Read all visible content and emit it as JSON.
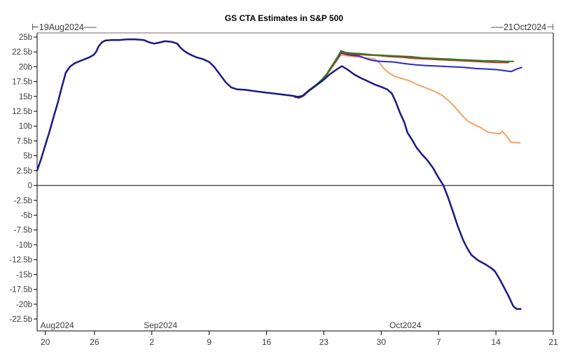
{
  "chart_data": {
    "type": "line",
    "title": "GS CTA Estimates in S&P 500",
    "grid": false,
    "legend": "none",
    "x_axis": {
      "start_label": "19Aug2024",
      "end_label": "21Oct2024",
      "start_decorated": "⊢19Aug2024──",
      "end_decorated": "──21Oct2024⊣",
      "unit": "days from 19Aug2024",
      "range_days": [
        0,
        63
      ],
      "ticks": [
        {
          "day": 1,
          "label": "20"
        },
        {
          "day": 7,
          "label": "26"
        },
        {
          "day": 14,
          "label": "2"
        },
        {
          "day": 21,
          "label": "9"
        },
        {
          "day": 28,
          "label": "16"
        },
        {
          "day": 35,
          "label": "23"
        },
        {
          "day": 42,
          "label": "30"
        },
        {
          "day": 49,
          "label": "7"
        },
        {
          "day": 56,
          "label": "14"
        },
        {
          "day": 63,
          "label": "21"
        }
      ],
      "month_labels": [
        {
          "day": 0.4,
          "label": "Aug2024"
        },
        {
          "day": 13.0,
          "label": "Sep2024"
        },
        {
          "day": 43.0,
          "label": "Oct2024"
        }
      ]
    },
    "y_axis": {
      "unit": "billions USD",
      "range": [
        -24.5,
        25.7
      ],
      "ticks": [
        {
          "value": 25,
          "label": "25b"
        },
        {
          "value": 22.5,
          "label": "22.5b"
        },
        {
          "value": 20,
          "label": "20b"
        },
        {
          "value": 17.5,
          "label": "17.5b"
        },
        {
          "value": 15,
          "label": "15b"
        },
        {
          "value": 12.5,
          "label": "12.5b"
        },
        {
          "value": 10,
          "label": "10b"
        },
        {
          "value": 7.5,
          "label": "7.5b"
        },
        {
          "value": 5,
          "label": "5b"
        },
        {
          "value": 2.5,
          "label": "2.5b"
        },
        {
          "value": 0,
          "label": "0"
        },
        {
          "value": -2.5,
          "label": "-2.5b"
        },
        {
          "value": -5,
          "label": "-5b"
        },
        {
          "value": -7.5,
          "label": "-7.5b"
        },
        {
          "value": -10,
          "label": "-10b"
        },
        {
          "value": -12.5,
          "label": "-12.5b"
        },
        {
          "value": -15,
          "label": "-15b"
        },
        {
          "value": -17.5,
          "label": "-17.5b"
        },
        {
          "value": -20,
          "label": "-20b"
        },
        {
          "value": -22.5,
          "label": "-22.5b"
        }
      ],
      "zero_line": true
    },
    "colors": {
      "navy": "#191983",
      "green": "#2a7e1e",
      "red": "#bf2e21",
      "royal_blue": "#2727cf",
      "orange": "#f5a264",
      "frame_top": "#8c8c8c",
      "axis": "#000000",
      "tick_text": "#3c3c3c"
    },
    "series": [
      {
        "name": "orange-line",
        "color_key": "orange",
        "width": 2,
        "points": [
          [
            31.4,
            14.8
          ],
          [
            32.5,
            15.0
          ],
          [
            33.2,
            15.9
          ],
          [
            34,
            16.7
          ],
          [
            34.8,
            17.7
          ],
          [
            35.4,
            18.7
          ],
          [
            36,
            19.9
          ],
          [
            36.6,
            21.1
          ],
          [
            37.1,
            22.0
          ],
          [
            38,
            21.8
          ],
          [
            39.5,
            21.6
          ],
          [
            40.6,
            21.4
          ],
          [
            41.2,
            21.3
          ],
          [
            41.8,
            20.6
          ],
          [
            42.4,
            19.6
          ],
          [
            43,
            18.9
          ],
          [
            43.6,
            18.4
          ],
          [
            44.3,
            18.1
          ],
          [
            45.3,
            17.7
          ],
          [
            46.4,
            17.0
          ],
          [
            47.5,
            16.4
          ],
          [
            48.6,
            15.8
          ],
          [
            49.4,
            15.2
          ],
          [
            50.2,
            14.3
          ],
          [
            51,
            13.2
          ],
          [
            51.8,
            11.9
          ],
          [
            52.6,
            10.8
          ],
          [
            53.3,
            10.3
          ],
          [
            54.2,
            9.7
          ],
          [
            55,
            9.0
          ],
          [
            55.8,
            8.8
          ],
          [
            56.4,
            8.7
          ],
          [
            56.8,
            9.1
          ],
          [
            57.3,
            8.3
          ],
          [
            57.8,
            7.3
          ],
          [
            58.4,
            7.2
          ],
          [
            59,
            7.2
          ]
        ]
      },
      {
        "name": "royal-blue-line",
        "color_key": "royal_blue",
        "width": 2,
        "points": [
          [
            31.4,
            14.9
          ],
          [
            32.5,
            15.1
          ],
          [
            33.2,
            16.0
          ],
          [
            34,
            16.8
          ],
          [
            34.8,
            17.8
          ],
          [
            35.4,
            18.8
          ],
          [
            36,
            20.0
          ],
          [
            36.6,
            21.2
          ],
          [
            37.1,
            22.3
          ],
          [
            38,
            22.0
          ],
          [
            39.3,
            21.8
          ],
          [
            40.5,
            21.2
          ],
          [
            41.2,
            21.0
          ],
          [
            42,
            20.9
          ],
          [
            43.5,
            20.8
          ],
          [
            45,
            20.5
          ],
          [
            46.3,
            20.3
          ],
          [
            47.5,
            20.2
          ],
          [
            49,
            20.1
          ],
          [
            50.5,
            20.0
          ],
          [
            52,
            19.9
          ],
          [
            53.5,
            19.7
          ],
          [
            55,
            19.6
          ],
          [
            56.2,
            19.5
          ],
          [
            57.2,
            19.3
          ],
          [
            57.9,
            19.2
          ],
          [
            58.5,
            19.6
          ],
          [
            59.2,
            19.9
          ]
        ]
      },
      {
        "name": "red-line",
        "color_key": "red",
        "width": 2,
        "points": [
          [
            31.4,
            14.9
          ],
          [
            32,
            14.7
          ],
          [
            32.5,
            15.1
          ],
          [
            33.2,
            16.0
          ],
          [
            34,
            16.8
          ],
          [
            34.8,
            17.8
          ],
          [
            35.4,
            18.8
          ],
          [
            36,
            20.0
          ],
          [
            36.6,
            21.3
          ],
          [
            37.1,
            22.5
          ],
          [
            37.7,
            22.2
          ],
          [
            38.5,
            22.1
          ],
          [
            40,
            22.0
          ],
          [
            41.5,
            21.9
          ],
          [
            43,
            21.7
          ],
          [
            44.5,
            21.6
          ],
          [
            46,
            21.4
          ],
          [
            47.5,
            21.3
          ],
          [
            49,
            21.2
          ],
          [
            50.5,
            21.1
          ],
          [
            52,
            21.0
          ],
          [
            53.5,
            20.9
          ],
          [
            55,
            20.8
          ],
          [
            56.3,
            20.7
          ],
          [
            57.6,
            20.7
          ]
        ]
      },
      {
        "name": "green-line",
        "color_key": "green",
        "width": 2,
        "points": [
          [
            31.4,
            15.0
          ],
          [
            32,
            14.8
          ],
          [
            32.5,
            15.2
          ],
          [
            33.2,
            16.1
          ],
          [
            34,
            16.9
          ],
          [
            34.8,
            17.9
          ],
          [
            35.4,
            18.9
          ],
          [
            36,
            20.2
          ],
          [
            36.6,
            21.5
          ],
          [
            37.1,
            22.7
          ],
          [
            37.6,
            22.4
          ],
          [
            38.3,
            22.3
          ],
          [
            39.5,
            22.2
          ],
          [
            41,
            22.0
          ],
          [
            42.5,
            21.9
          ],
          [
            44,
            21.8
          ],
          [
            45.5,
            21.7
          ],
          [
            47,
            21.5
          ],
          [
            48.5,
            21.4
          ],
          [
            50,
            21.3
          ],
          [
            51.5,
            21.2
          ],
          [
            53,
            21.1
          ],
          [
            54.5,
            21.0
          ],
          [
            56,
            21.0
          ],
          [
            57,
            20.9
          ],
          [
            58.2,
            20.9
          ]
        ]
      },
      {
        "name": "navy-line",
        "color_key": "navy",
        "width": 2.5,
        "points": [
          [
            0,
            2.5
          ],
          [
            0.5,
            4.5
          ],
          [
            1,
            6.8
          ],
          [
            1.5,
            9.0
          ],
          [
            2,
            11.5
          ],
          [
            2.5,
            13.8
          ],
          [
            3,
            16.5
          ],
          [
            3.5,
            19.0
          ],
          [
            4,
            20.0
          ],
          [
            4.6,
            20.6
          ],
          [
            5.5,
            21.1
          ],
          [
            6.4,
            21.6
          ],
          [
            6.9,
            22.0
          ],
          [
            7.2,
            22.5
          ],
          [
            7.5,
            23.4
          ],
          [
            7.9,
            24.1
          ],
          [
            8.3,
            24.4
          ],
          [
            9,
            24.5
          ],
          [
            10,
            24.5
          ],
          [
            11,
            24.6
          ],
          [
            12,
            24.6
          ],
          [
            13,
            24.5
          ],
          [
            13.7,
            24.1
          ],
          [
            14.3,
            23.9
          ],
          [
            15,
            24.1
          ],
          [
            15.6,
            24.3
          ],
          [
            16.4,
            24.2
          ],
          [
            17.1,
            23.9
          ],
          [
            17.5,
            23.2
          ],
          [
            18,
            22.6
          ],
          [
            18.6,
            22.1
          ],
          [
            19.4,
            21.6
          ],
          [
            20.2,
            21.3
          ],
          [
            21,
            20.8
          ],
          [
            21.6,
            20.0
          ],
          [
            22.3,
            18.7
          ],
          [
            23,
            17.4
          ],
          [
            23.7,
            16.5
          ],
          [
            24.4,
            16.2
          ],
          [
            25.5,
            16.1
          ],
          [
            26.5,
            15.9
          ],
          [
            27.6,
            15.7
          ],
          [
            28.9,
            15.5
          ],
          [
            30,
            15.3
          ],
          [
            31.2,
            15.1
          ],
          [
            31.9,
            14.9
          ],
          [
            32.4,
            15.1
          ],
          [
            33.1,
            15.9
          ],
          [
            34,
            16.8
          ],
          [
            34.8,
            17.6
          ],
          [
            35.6,
            18.6
          ],
          [
            36.4,
            19.4
          ],
          [
            37.2,
            20.1
          ],
          [
            37.9,
            19.5
          ],
          [
            38.7,
            18.7
          ],
          [
            39.5,
            18.1
          ],
          [
            40.3,
            17.6
          ],
          [
            41.2,
            17.0
          ],
          [
            42,
            16.6
          ],
          [
            42.7,
            16.2
          ],
          [
            43.3,
            15.5
          ],
          [
            43.8,
            14.0
          ],
          [
            44.3,
            12.2
          ],
          [
            44.8,
            10.7
          ],
          [
            45.2,
            8.9
          ],
          [
            45.8,
            7.6
          ],
          [
            46.3,
            6.4
          ],
          [
            47,
            5.2
          ],
          [
            47.6,
            4.3
          ],
          [
            48.3,
            3.0
          ],
          [
            49,
            1.3
          ],
          [
            49.6,
            0.0
          ],
          [
            50.1,
            -1.8
          ],
          [
            50.7,
            -4.2
          ],
          [
            51.3,
            -6.7
          ],
          [
            52,
            -9.2
          ],
          [
            52.5,
            -10.6
          ],
          [
            53,
            -11.7
          ],
          [
            53.8,
            -12.6
          ],
          [
            54.6,
            -13.2
          ],
          [
            55.4,
            -13.9
          ],
          [
            55.9,
            -14.5
          ],
          [
            56.5,
            -15.9
          ],
          [
            57,
            -17.2
          ],
          [
            57.6,
            -18.8
          ],
          [
            58.1,
            -20.3
          ],
          [
            58.5,
            -20.8
          ],
          [
            59.1,
            -20.8
          ]
        ]
      }
    ]
  }
}
